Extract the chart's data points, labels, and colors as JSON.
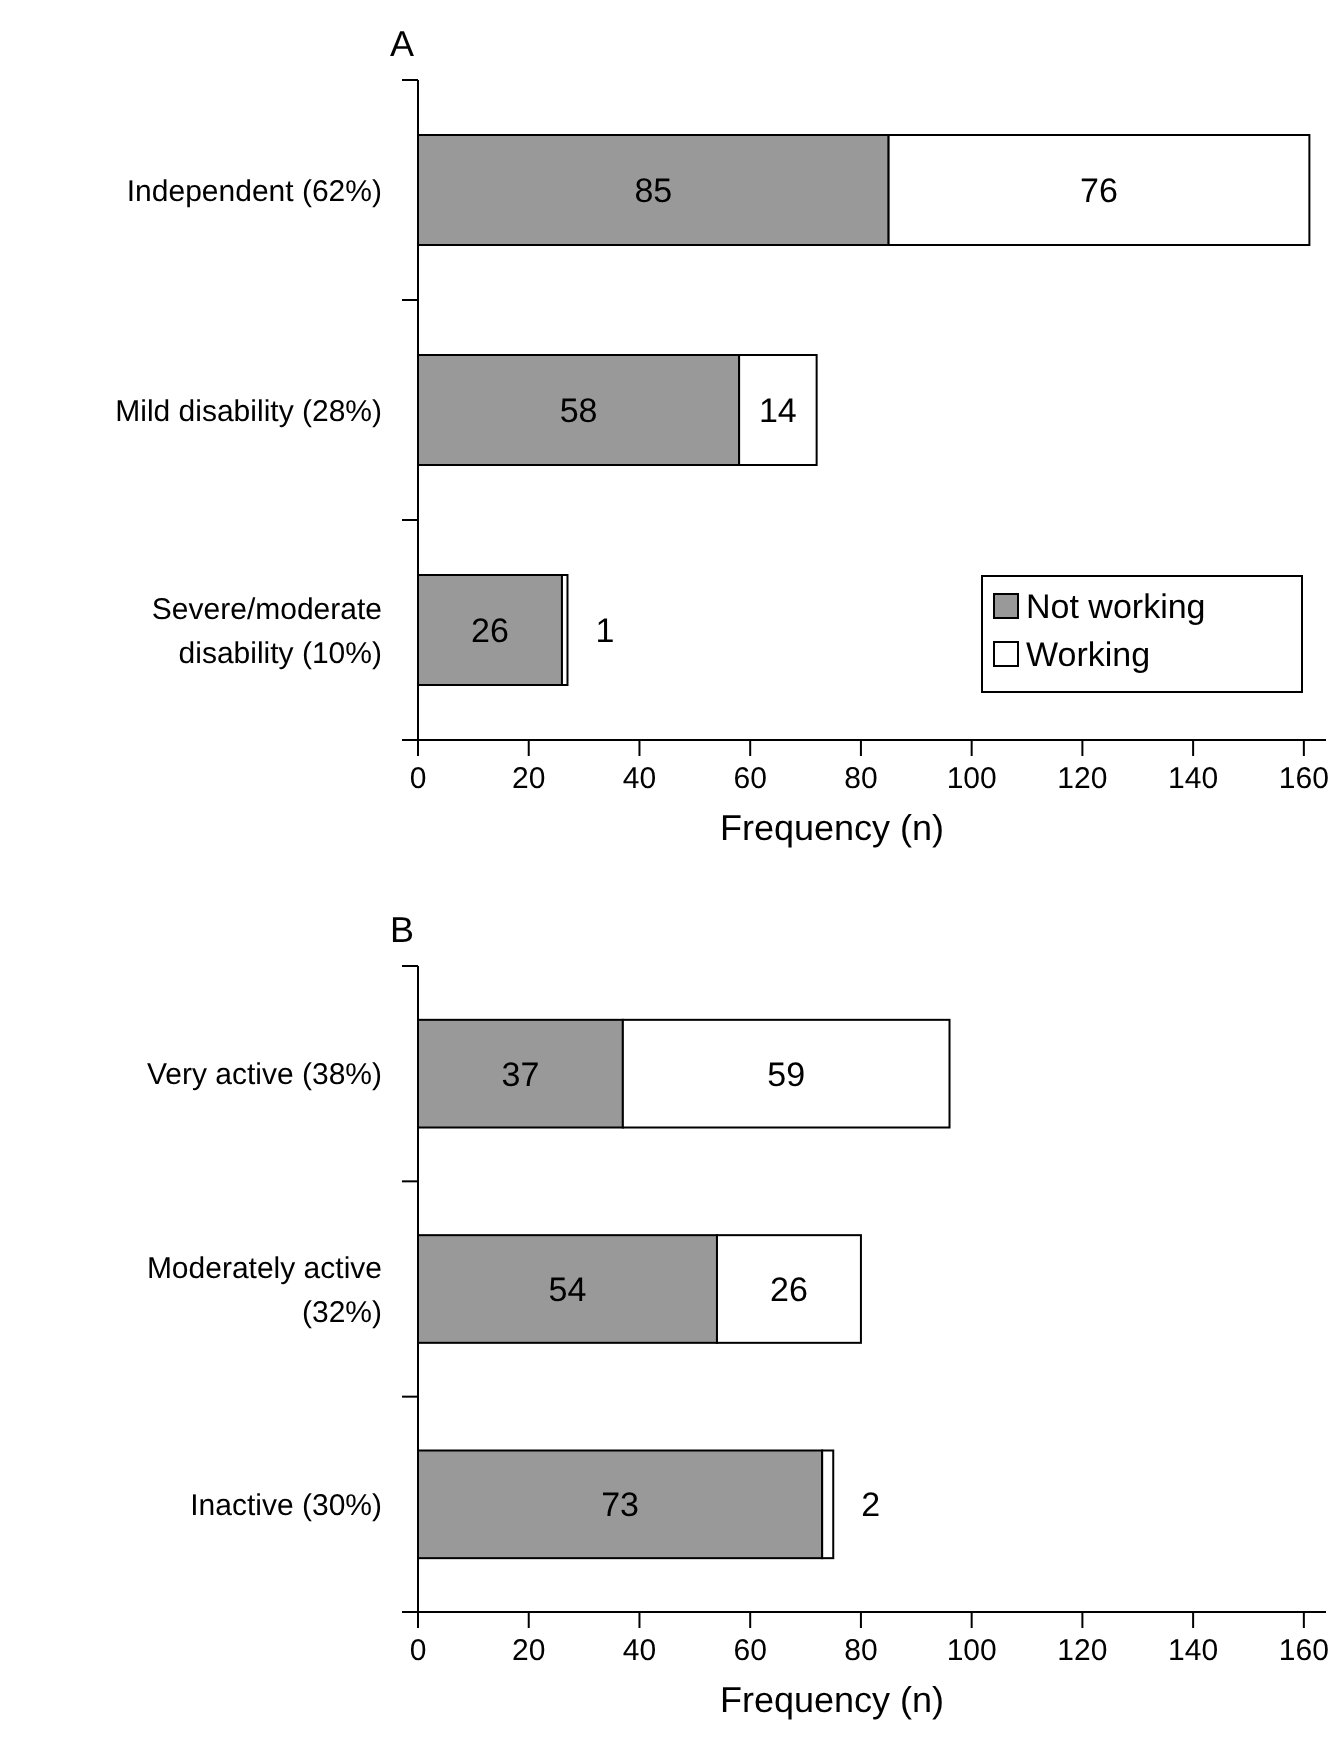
{
  "chart_data": [
    {
      "type": "bar",
      "title": "A",
      "orientation": "horizontal",
      "stacked": true,
      "categories": [
        "Independent (62%)",
        "Mild disability (28%)",
        "Severe/moderate disability (10%)"
      ],
      "xlabel": "Frequency (n)",
      "xlim": [
        0,
        164
      ],
      "xticks": [
        0,
        20,
        40,
        60,
        80,
        100,
        120,
        140,
        160
      ],
      "legend": "bottom right",
      "data_labels": true,
      "series": [
        {
          "name": "Not working",
          "color": "#999999",
          "values": [
            85,
            58,
            26
          ]
        },
        {
          "name": "Working",
          "color": "#ffffff",
          "values": [
            76,
            14,
            1
          ]
        }
      ]
    },
    {
      "type": "bar",
      "title": "B",
      "orientation": "horizontal",
      "stacked": true,
      "categories": [
        "Very active (38%)",
        "Moderately active (32%)",
        "Inactive (30%)"
      ],
      "xlabel": "Frequency (n)",
      "xlim": [
        0,
        164
      ],
      "xticks": [
        0,
        20,
        40,
        60,
        80,
        100,
        120,
        140,
        160
      ],
      "data_labels": true,
      "series": [
        {
          "color": "#999999",
          "values": [
            37,
            54,
            73
          ]
        },
        {
          "color": "#ffffff",
          "values": [
            59,
            26,
            2
          ]
        }
      ]
    }
  ]
}
